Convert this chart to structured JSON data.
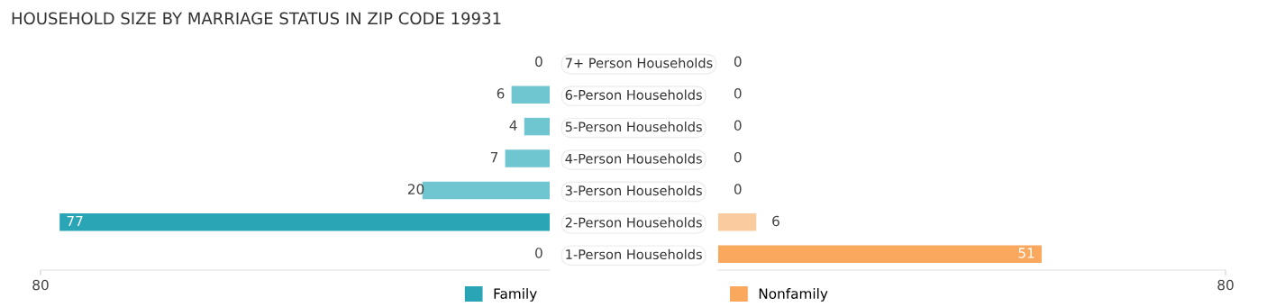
{
  "chart_data": [
    {
      "type": "bar",
      "orientation": "horizontal",
      "title": "HOUSEHOLD SIZE BY MARRIAGE STATUS IN ZIP CODE 19931",
      "categories": [
        "7+ Person Households",
        "6-Person Households",
        "5-Person Households",
        "4-Person Households",
        "3-Person Households",
        "2-Person Households",
        "1-Person Households"
      ],
      "series": [
        {
          "name": "Family",
          "color": "#29a5b6",
          "colors": [
            "#6fc6d0",
            "#6fc6d0",
            "#6fc6d0",
            "#6fc6d0",
            "#6fc6d0",
            "#29a5b6",
            "#6fc6d0"
          ],
          "values": [
            0,
            6,
            4,
            7,
            20,
            77,
            0
          ]
        }
      ],
      "xlim": [
        80,
        0
      ],
      "xticks": [
        80
      ],
      "data_labels": true,
      "grid": false,
      "legend": "bottom right"
    },
    {
      "type": "bar",
      "orientation": "horizontal",
      "categories": [
        null,
        null,
        null,
        null,
        null,
        null,
        null
      ],
      "series": [
        {
          "name": "Nonfamily",
          "color": "#f9a85d",
          "colors": [
            "#f9cb9f",
            "#f9cb9f",
            "#f9cb9f",
            "#f9cb9f",
            "#f9cb9f",
            "#f9cb9f",
            "#f9a85d"
          ],
          "values": [
            0,
            0,
            0,
            0,
            0,
            6,
            51
          ]
        }
      ],
      "xlim": [
        0,
        80
      ],
      "xticks": [
        80
      ],
      "data_labels": true,
      "grid": false,
      "legend": "bottom left",
      "tick_labels": "x"
    }
  ]
}
